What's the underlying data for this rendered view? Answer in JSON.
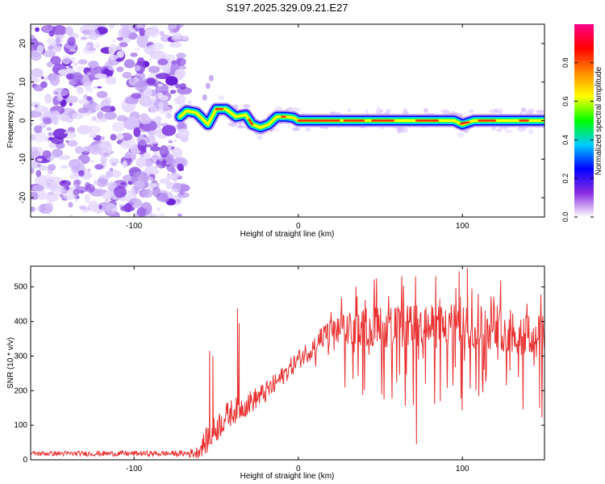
{
  "title": "S197.2025.329.09.21.E27",
  "chart_data": [
    {
      "type": "heatmap",
      "name": "spectrogram",
      "xlabel": "Height of straight line (km)",
      "ylabel": "Frequency (Hz)",
      "xlim": [
        -163,
        150
      ],
      "ylim": [
        -25,
        25
      ],
      "xticks": [
        -100,
        0,
        100
      ],
      "xtick_labels": [
        "-100",
        "0",
        "100"
      ],
      "yticks": [
        20,
        10,
        0,
        -10,
        -20
      ],
      "ytick_labels": [
        "20",
        "10",
        "0",
        "-10",
        "-20"
      ],
      "noise_region_x": [
        -163,
        -72
      ],
      "ridge": [
        {
          "x": -72,
          "f": 1.0
        },
        {
          "x": -68,
          "f": 2.5
        },
        {
          "x": -62,
          "f": 2.0
        },
        {
          "x": -55,
          "f": -1.0
        },
        {
          "x": -50,
          "f": 3.0
        },
        {
          "x": -44,
          "f": 3.0
        },
        {
          "x": -38,
          "f": 1.0
        },
        {
          "x": -32,
          "f": 1.5
        },
        {
          "x": -28,
          "f": -1.0
        },
        {
          "x": -23,
          "f": -1.8
        },
        {
          "x": -18,
          "f": -1.0
        },
        {
          "x": -13,
          "f": 1.0
        },
        {
          "x": -8,
          "f": 1.0
        },
        {
          "x": -3,
          "f": 0.8
        },
        {
          "x": 0,
          "f": 0.0
        },
        {
          "x": 40,
          "f": 0.0
        },
        {
          "x": 70,
          "f": 0.0
        },
        {
          "x": 95,
          "f": 0.0
        },
        {
          "x": 100,
          "f": -1.0
        },
        {
          "x": 107,
          "f": 0.0
        },
        {
          "x": 130,
          "f": 0.0
        },
        {
          "x": 150,
          "f": 0.0
        }
      ],
      "colorbar": {
        "label": "Normalized spectral amplitude",
        "range": [
          0,
          1
        ],
        "ticks": [
          0.0,
          0.2,
          0.4,
          0.6,
          0.8
        ],
        "tick_labels": [
          "0.0",
          "0.2",
          "0.4",
          "0.6",
          "0.8"
        ],
        "colors": [
          "#ffffff",
          "#8a2be2",
          "#0000ff",
          "#00ccff",
          "#00ff00",
          "#ffff00",
          "#ff8800",
          "#ff0000",
          "#ff0088"
        ]
      }
    },
    {
      "type": "line",
      "name": "snr",
      "xlabel": "Height of straight line (km)",
      "ylabel": "SNR (10 * v/v)",
      "xlim": [
        -163,
        150
      ],
      "ylim": [
        0,
        560
      ],
      "xticks": [
        -100,
        0,
        100
      ],
      "xtick_labels": [
        "-100",
        "0",
        "100"
      ],
      "yticks": [
        0,
        100,
        200,
        300,
        400,
        500
      ],
      "ytick_labels": [
        "0",
        "100",
        "200",
        "300",
        "400",
        "500"
      ],
      "series": [
        {
          "name": "SNR",
          "color": "#e83030",
          "envelope": {
            "x": [
              -163,
              -70,
              -62,
              -55,
              -50,
              -45,
              -40,
              -35,
              -30,
              -25,
              -20,
              -15,
              -10,
              -5,
              0,
              5,
              10,
              15,
              20,
              30,
              40,
              60,
              80,
              100,
              120,
              140,
              150
            ],
            "mean": [
              18,
              18,
              20,
              60,
              90,
              120,
              140,
              150,
              165,
              180,
              195,
              215,
              240,
              265,
              290,
              310,
              330,
              350,
              365,
              375,
              385,
              385,
              385,
              385,
              385,
              365,
              345
            ],
            "spread": [
              10,
              12,
              25,
              60,
              60,
              60,
              55,
              50,
              50,
              45,
              45,
              45,
              40,
              40,
              40,
              45,
              50,
              55,
              60,
              70,
              80,
              90,
              90,
              95,
              95,
              100,
              100
            ]
          },
          "spikes": [
            {
              "x": -54,
              "y": 315
            },
            {
              "x": -52,
              "y": 300
            },
            {
              "x": -37,
              "y": 438
            },
            {
              "x": -36,
              "y": 395
            },
            {
              "x": 72,
              "y": 45
            },
            {
              "x": 98,
              "y": 545
            },
            {
              "x": 103,
              "y": 555
            },
            {
              "x": 147,
              "y": 150
            }
          ]
        }
      ]
    }
  ]
}
